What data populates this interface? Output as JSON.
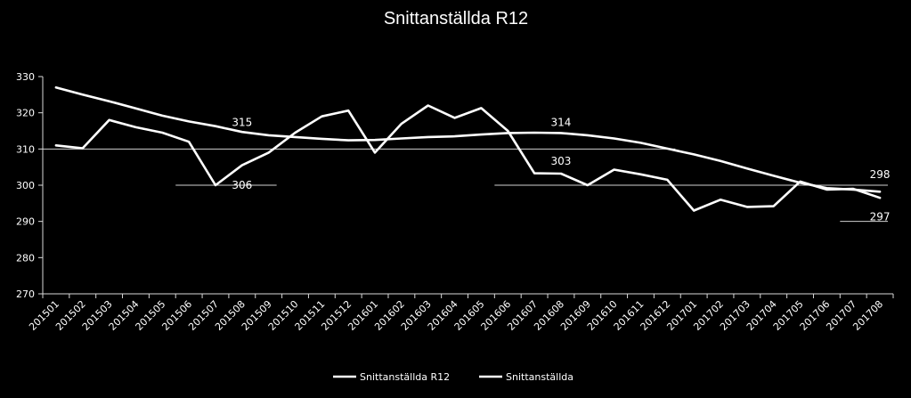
{
  "chart_data": {
    "type": "line",
    "title": "Snittanställda R12",
    "categories": [
      "201501",
      "201502",
      "201503",
      "201504",
      "201505",
      "201506",
      "201507",
      "201508",
      "201509",
      "201510",
      "201511",
      "201512",
      "201601",
      "201602",
      "201603",
      "201604",
      "201605",
      "201606",
      "201607",
      "201608",
      "201609",
      "201610",
      "201611",
      "201612",
      "201701",
      "201702",
      "201703",
      "201704",
      "201705",
      "201706",
      "201707",
      "201708"
    ],
    "ylim": [
      270,
      330
    ],
    "yticks": [
      270,
      280,
      290,
      300,
      310,
      320,
      330
    ],
    "grid": false,
    "legend_position": "bottom",
    "series": [
      {
        "name": "Snittanställda R12",
        "values": [
          327,
          325,
          323.2,
          321.2,
          319.2,
          317.6,
          316.3,
          314.7,
          313.8,
          313.3,
          312.8,
          312.4,
          312.5,
          312.9,
          313.3,
          313.5,
          314.0,
          314.4,
          314.5,
          314.4,
          313.8,
          312.9,
          311.7,
          310.1,
          308.5,
          306.7,
          304.6,
          302.6,
          300.7,
          299.2,
          298.8,
          298.2
        ]
      },
      {
        "name": "Snittanställda",
        "values": [
          311,
          310.2,
          318,
          316,
          314.5,
          312,
          300,
          305.5,
          309,
          314.5,
          319,
          320.6,
          309,
          317,
          322,
          318.6,
          321.3,
          315,
          303.3,
          303.2,
          300,
          304.3,
          303,
          301.5,
          293,
          296,
          294,
          294.2,
          301,
          298.8,
          299,
          296.5
        ]
      }
    ],
    "annotations": [
      {
        "text": "315",
        "x": "201508",
        "y": 317.3
      },
      {
        "text": "306",
        "x": "201508",
        "y": 300
      },
      {
        "text": "314",
        "x": "201608",
        "y": 317.3
      },
      {
        "text": "303",
        "x": "201608",
        "y": 306.7
      },
      {
        "text": "298",
        "x": "201708",
        "y": 303
      },
      {
        "text": "297",
        "x": "201708",
        "y": 291.3
      }
    ],
    "reference_lines": [
      {
        "y": 310,
        "from": "201501",
        "to": "201612"
      },
      {
        "y": 300,
        "from": "201506",
        "to": "201509"
      },
      {
        "y": 300,
        "from": "201606",
        "to": "201708"
      },
      {
        "y": 290,
        "from": "201707",
        "to": "201708"
      }
    ]
  }
}
